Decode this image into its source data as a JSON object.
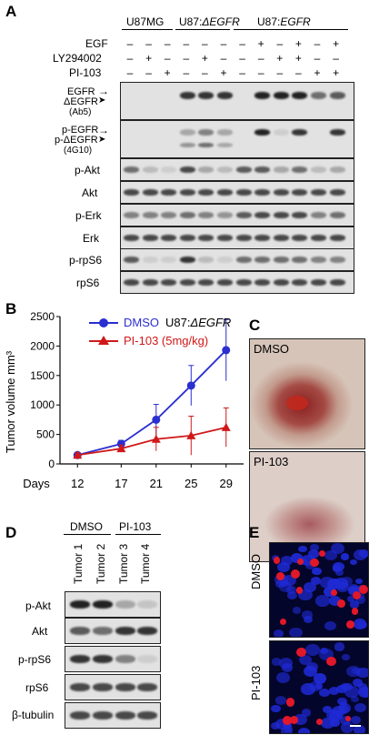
{
  "panelA": {
    "letter": "A",
    "groups": [
      "U87MG",
      "U87:",
      "ΔEGFR",
      "U87:",
      "EGFR"
    ],
    "cond_labels": [
      "EGF",
      "LY294002",
      "PI-103"
    ],
    "cond_rows": [
      [
        "–",
        "–",
        "–",
        "–",
        "–",
        "–",
        "–",
        "+",
        "–",
        "+",
        "–",
        "+"
      ],
      [
        "–",
        "+",
        "–",
        "–",
        "+",
        "–",
        "–",
        "–",
        "+",
        "+",
        "–",
        "–"
      ],
      [
        "–",
        "–",
        "+",
        "–",
        "–",
        "+",
        "–",
        "–",
        "–",
        "–",
        "+",
        "+"
      ]
    ],
    "blot_labels": [
      "EGFR",
      "ΔEGFR",
      "(Ab5)",
      "p-EGFR",
      "p-ΔEGFR",
      "(4G10)",
      "p-Akt",
      "Akt",
      "p-Erk",
      "Erk",
      "p-rpS6",
      "rpS6"
    ]
  },
  "panelB": {
    "letter": "B",
    "legend": [
      {
        "name": "DMSO",
        "color": "#2b2ed0"
      },
      {
        "name": "PI-103 (5mg/kg)",
        "color": "#d01818"
      }
    ],
    "cellline_prefix": "U87:",
    "cellline_suffix": "ΔEGFR"
  },
  "chart_data": {
    "type": "line",
    "x": [
      12,
      17,
      21,
      25,
      29
    ],
    "xlabel": "Days",
    "ylabel": "Tumor volume mm³",
    "ylim": [
      0,
      2500
    ],
    "yticks": [
      0,
      500,
      1000,
      1500,
      2000,
      2500
    ],
    "series": [
      {
        "name": "DMSO",
        "color": "#2b2ed0",
        "marker": "circle",
        "values": [
          150,
          340,
          750,
          1330,
          1930
        ],
        "err": [
          40,
          60,
          260,
          340,
          520
        ]
      },
      {
        "name": "PI-103 (5mg/kg)",
        "color": "#d01818",
        "marker": "triangle",
        "values": [
          150,
          260,
          420,
          480,
          620
        ],
        "err": [
          40,
          60,
          200,
          330,
          330
        ]
      }
    ]
  },
  "panelC": {
    "letter": "C",
    "labels": [
      "DMSO",
      "PI-103"
    ]
  },
  "panelD": {
    "letter": "D",
    "groups": [
      "DMSO",
      "PI-103"
    ],
    "lanes": [
      "Tumor 1",
      "Tumor 2",
      "Tumor 3",
      "Tumor 4"
    ],
    "blot_labels": [
      "p-Akt",
      "Akt",
      "p-rpS6",
      "rpS6",
      "β-tubulin"
    ]
  },
  "panelE": {
    "letter": "E",
    "labels": [
      "DMSO",
      "PI-103"
    ]
  }
}
